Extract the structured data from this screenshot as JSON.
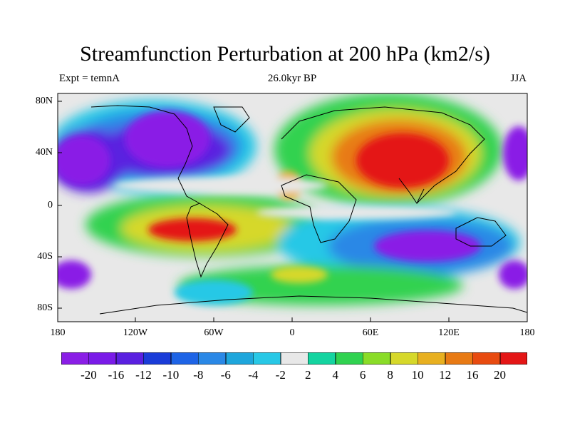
{
  "header": {
    "title": "Streamfunction Perturbation at 200 hPa (km2/s)",
    "left": "Expt = temnA",
    "center": "26.0kyr BP",
    "right": "JJA"
  },
  "axes": {
    "y_ticks": [
      "80N",
      "40N",
      "0",
      "40S",
      "80S"
    ],
    "x_ticks": [
      "180",
      "120W",
      "60W",
      "0",
      "60E",
      "120E",
      "180"
    ]
  },
  "colorbar": {
    "colors": [
      "#8a1ee6",
      "#7a1be8",
      "#5a20e0",
      "#1a3cd8",
      "#1e64e6",
      "#2a88e6",
      "#1ea6dc",
      "#28c8e6",
      "#e8e8e8",
      "#14d4a0",
      "#30d250",
      "#8adc28",
      "#d6d82a",
      "#e8b020",
      "#e87a14",
      "#e84b10",
      "#e41616"
    ],
    "labels": [
      "-20",
      "-16",
      "-12",
      "-10",
      "-8",
      "-6",
      "-4",
      "-2",
      "2",
      "4",
      "6",
      "8",
      "10",
      "12",
      "16",
      "20"
    ]
  }
}
